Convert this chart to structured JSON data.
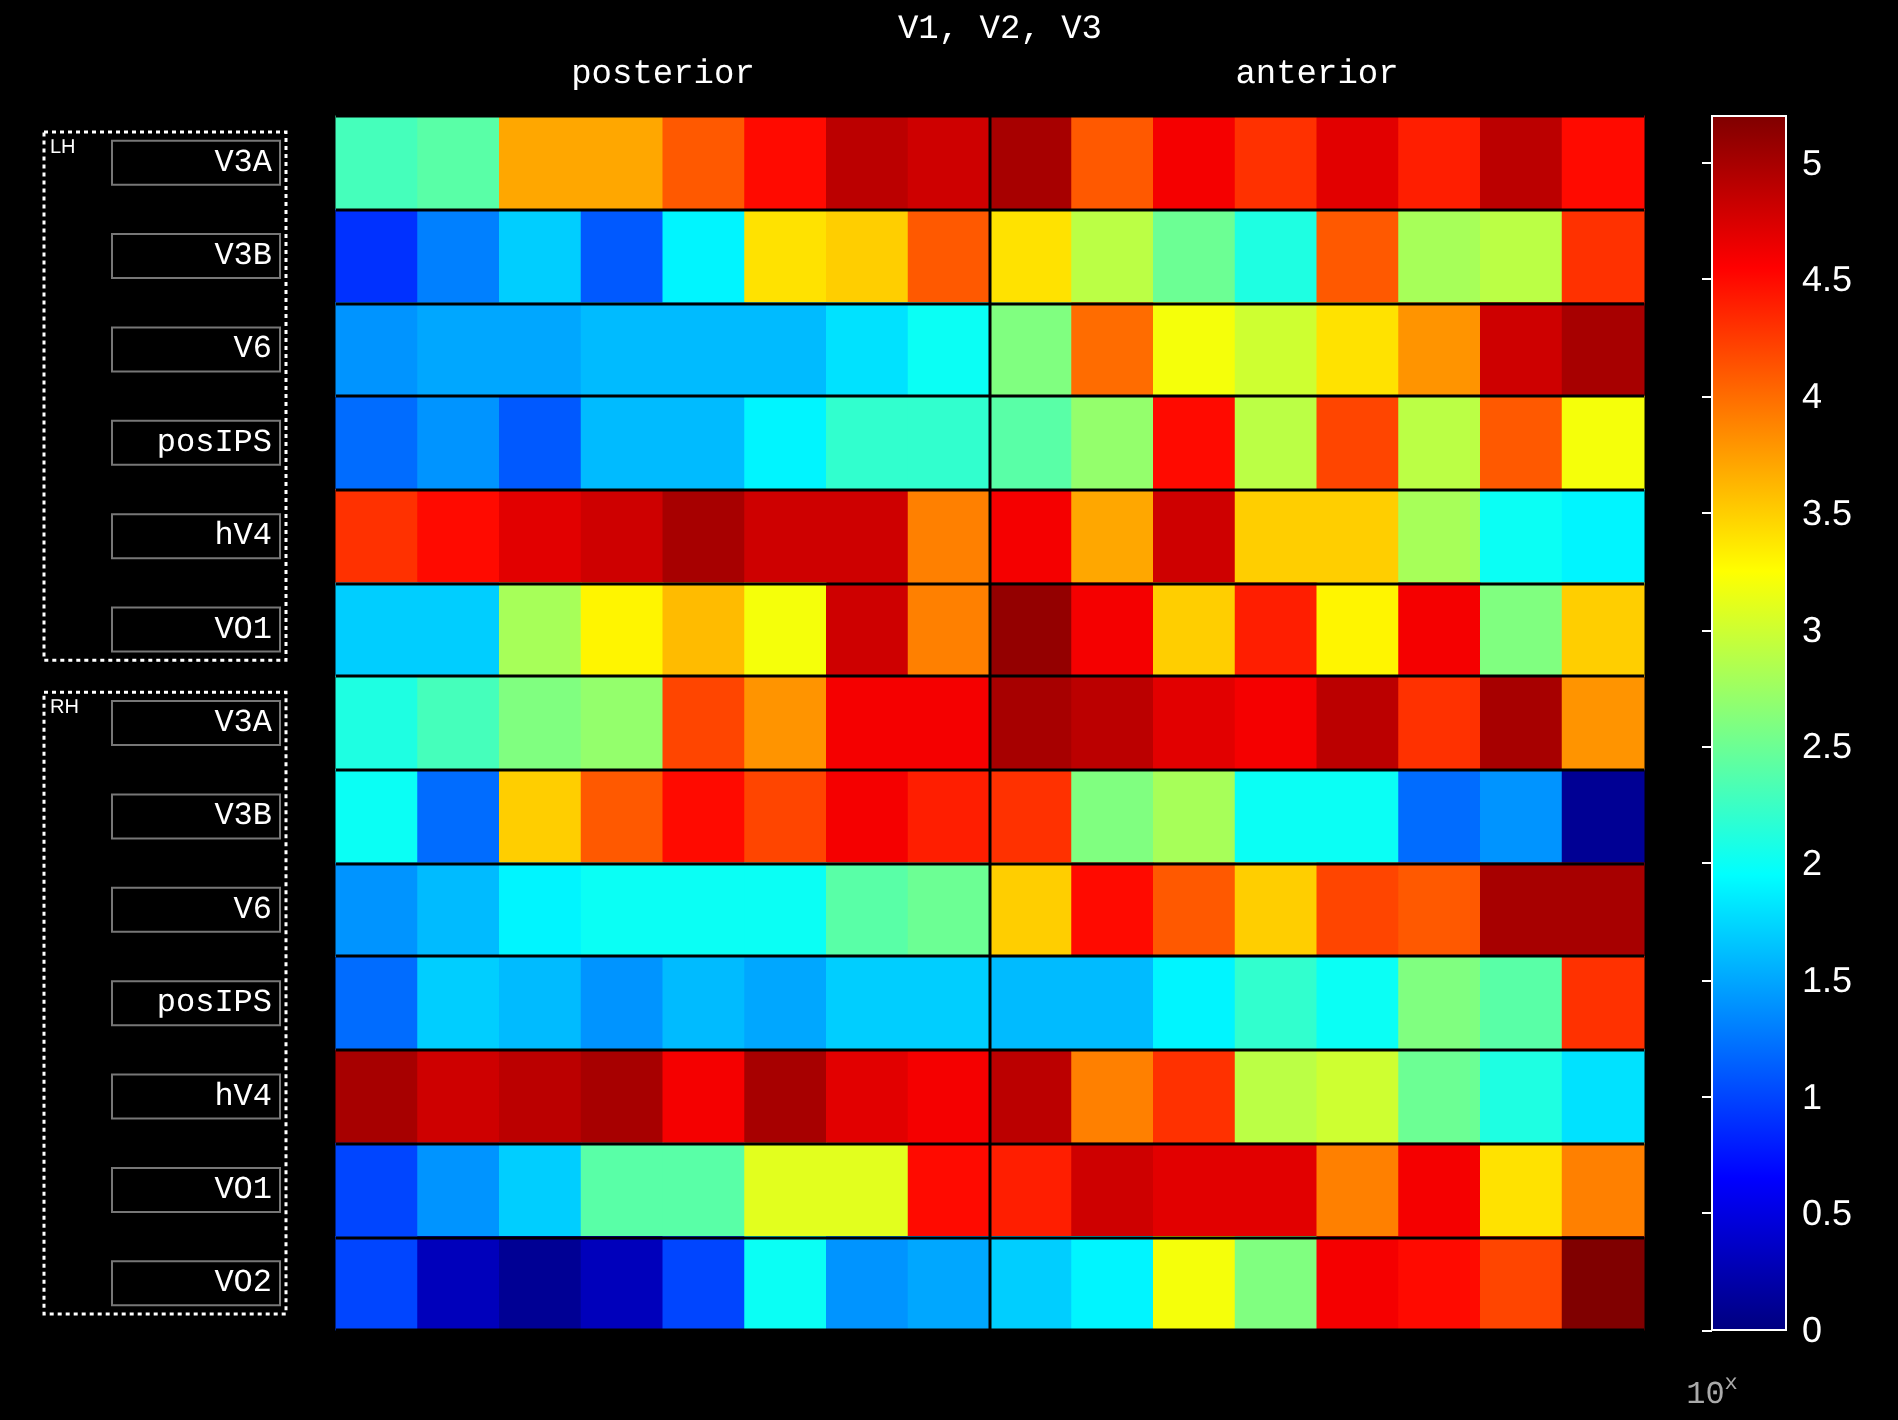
{
  "chart_data": {
    "type": "heatmap",
    "title": "V1, V2, V3",
    "annotations": [
      "posterior",
      "anterior",
      "LH",
      "RH"
    ],
    "categories": [
      null,
      null,
      null,
      null,
      null,
      null,
      null,
      null,
      null,
      null,
      null,
      null,
      null,
      null,
      null,
      null
    ],
    "y_categories": [
      "V3A",
      "V3B",
      "V6",
      "posIPS",
      "hV4",
      "VO1",
      "V3A",
      "V3B",
      "V6",
      "posIPS",
      "hV4",
      "VO1",
      "VO2"
    ],
    "cells": [
      [
        2.3,
        2.4,
        3.7,
        3.7,
        4.1,
        4.5,
        4.9,
        4.8,
        5.0,
        4.1,
        4.6,
        4.3,
        4.7,
        4.4,
        4.9,
        4.5
      ],
      [
        0.9,
        1.3,
        1.7,
        1.1,
        1.9,
        3.4,
        3.5,
        4.1,
        3.4,
        2.9,
        2.5,
        2.1,
        4.1,
        2.8,
        2.9,
        4.3
      ],
      [
        1.4,
        1.5,
        1.5,
        1.6,
        1.6,
        1.6,
        1.8,
        2.0,
        2.6,
        4.0,
        3.2,
        3.0,
        3.4,
        3.8,
        4.8,
        5.0
      ],
      [
        1.2,
        1.4,
        1.1,
        1.6,
        1.6,
        1.9,
        2.2,
        2.2,
        2.4,
        2.7,
        4.5,
        2.9,
        4.2,
        2.9,
        4.1,
        3.2
      ],
      [
        4.3,
        4.5,
        4.7,
        4.8,
        5.0,
        4.8,
        4.8,
        3.9,
        4.6,
        3.7,
        4.8,
        3.5,
        3.5,
        2.8,
        2.0,
        1.9
      ],
      [
        1.7,
        1.7,
        2.8,
        3.3,
        3.6,
        3.2,
        4.8,
        3.9,
        5.1,
        4.6,
        3.5,
        4.4,
        3.3,
        4.6,
        2.6,
        3.5
      ],
      [
        2.1,
        2.3,
        2.6,
        2.7,
        4.2,
        3.8,
        4.6,
        4.6,
        5.0,
        4.9,
        4.7,
        4.6,
        4.9,
        4.3,
        5.0,
        3.8
      ],
      [
        2.0,
        1.2,
        3.5,
        4.1,
        4.5,
        4.2,
        4.6,
        4.4,
        4.3,
        2.6,
        2.8,
        2.0,
        2.0,
        1.2,
        1.4,
        0.1
      ],
      [
        1.4,
        1.6,
        1.9,
        2.0,
        2.0,
        2.0,
        2.4,
        2.5,
        3.5,
        4.5,
        4.1,
        3.5,
        4.2,
        4.1,
        5.0,
        5.0
      ],
      [
        1.2,
        1.7,
        1.6,
        1.4,
        1.6,
        1.5,
        1.7,
        1.7,
        1.6,
        1.6,
        1.9,
        2.2,
        2.0,
        2.6,
        2.4,
        4.3
      ],
      [
        5.0,
        4.8,
        4.9,
        5.0,
        4.6,
        5.0,
        4.7,
        4.6,
        4.9,
        3.9,
        4.3,
        2.9,
        3.0,
        2.5,
        2.1,
        1.8
      ],
      [
        1.0,
        1.4,
        1.7,
        2.4,
        2.4,
        3.1,
        3.1,
        4.5,
        4.4,
        4.8,
        4.7,
        4.7,
        3.9,
        4.6,
        3.4,
        3.9
      ],
      [
        1.0,
        0.3,
        0.1,
        0.3,
        1.0,
        2.0,
        1.4,
        1.5,
        1.7,
        1.9,
        3.2,
        2.6,
        4.6,
        4.5,
        4.2,
        5.2
      ]
    ],
    "clim": [
      0,
      5.2
    ],
    "cticks": [
      0,
      0.5,
      1,
      1.5,
      2,
      2.5,
      3,
      3.5,
      4,
      4.5,
      5
    ],
    "clabel": "10$^{x}$",
    "grid": "y",
    "tick_labels": "y"
  }
}
